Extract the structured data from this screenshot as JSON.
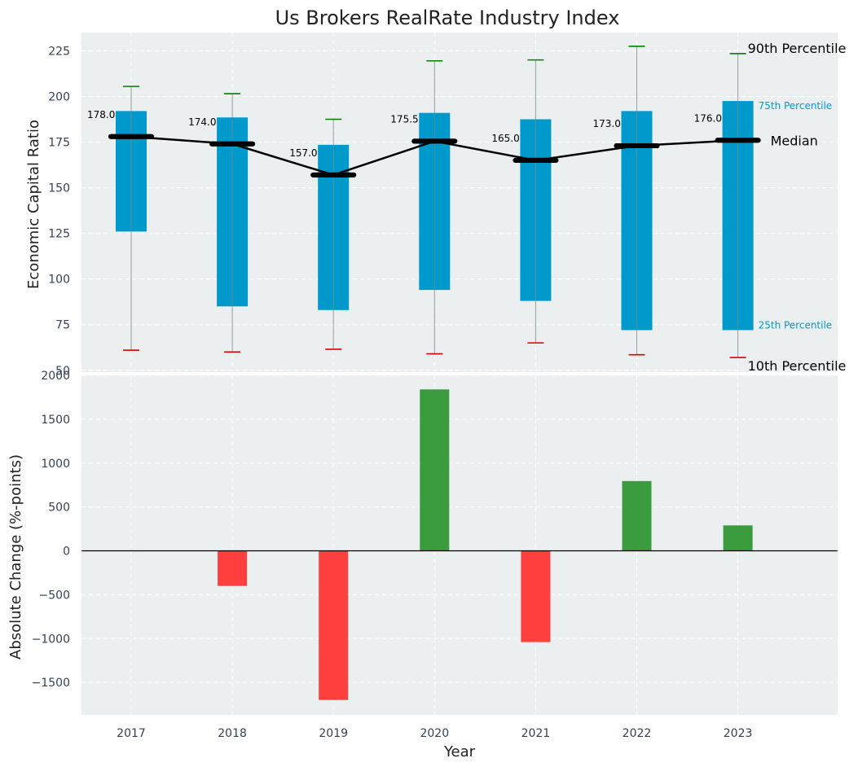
{
  "chart_data": [
    {
      "type": "box",
      "title": "Us Brokers RealRate Industry Index",
      "ylabel": "Economic Capital Ratio",
      "xlabel": "",
      "ylim": [
        49,
        235
      ],
      "yticks": [
        50,
        75,
        100,
        125,
        150,
        175,
        200,
        225
      ],
      "categories": [
        "2017",
        "2018",
        "2019",
        "2020",
        "2021",
        "2022",
        "2023"
      ],
      "p10": [
        61,
        60,
        61.5,
        59,
        65,
        58.5,
        57
      ],
      "p25": [
        126,
        85,
        83,
        94,
        88,
        72,
        72
      ],
      "median": [
        178.0,
        174.0,
        157.0,
        175.5,
        165.0,
        173.0,
        176.0
      ],
      "p75": [
        192,
        188.5,
        173.5,
        191,
        187.5,
        192,
        197.5
      ],
      "p90": [
        205.5,
        201.5,
        187.5,
        219.5,
        220,
        227.5,
        223.5
      ],
      "median_labels": [
        "178.0",
        "174.0",
        "157.0",
        "175.5",
        "165.0",
        "173.0",
        "176.0"
      ],
      "annotations": {
        "p90": "90th Percentile",
        "p75": "75th Percentile",
        "median": "Median",
        "p25": "25th Percentile",
        "p10": "10th Percentile"
      },
      "colors": {
        "box": "#0099cc",
        "whisker_top": "#008000",
        "whisker_bottom": "#dd0000",
        "median": "#000000"
      }
    },
    {
      "type": "bar",
      "title": "",
      "xlabel": "Year",
      "ylabel": "Absolute Change (%-points)",
      "ylim": [
        -1870,
        2000
      ],
      "yticks": [
        -1500,
        -1000,
        -500,
        0,
        500,
        1000,
        1500,
        2000
      ],
      "ytick_labels": [
        "−1500",
        "−1000",
        "−500",
        "0",
        "500",
        "1000",
        "1500",
        "2000"
      ],
      "categories": [
        "2017",
        "2018",
        "2019",
        "2020",
        "2021",
        "2022",
        "2023"
      ],
      "values": [
        0,
        -400,
        -1700,
        1840,
        -1040,
        795,
        290
      ],
      "colors": {
        "positive": "#3a9c3e",
        "negative": "#ff3e3e"
      }
    }
  ]
}
